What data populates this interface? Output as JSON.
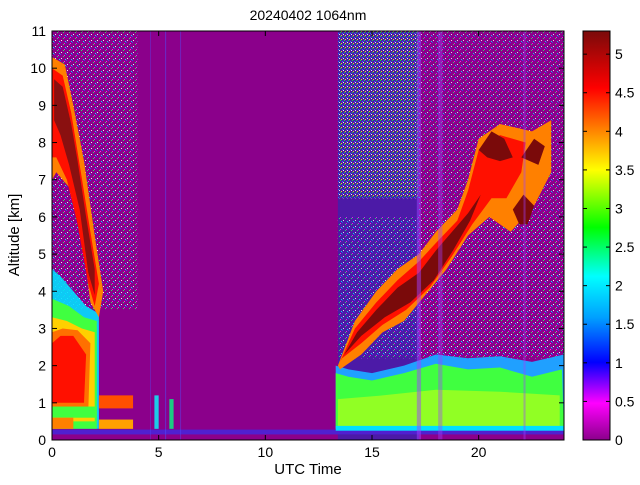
{
  "chart_data": {
    "type": "heatmap",
    "title": "20240402 1064nm",
    "xlabel": "UTC Time",
    "ylabel": "Altitude [km]",
    "xlim": [
      0,
      24
    ],
    "ylim": [
      0,
      11
    ],
    "x_ticks": [
      0,
      5,
      10,
      15,
      20
    ],
    "y_ticks": [
      0,
      1,
      2,
      3,
      4,
      5,
      6,
      7,
      8,
      9,
      10,
      11
    ],
    "colorbar": {
      "range": [
        0,
        5.3
      ],
      "ticks": [
        0,
        0.5,
        1,
        1.5,
        2,
        2.5,
        3,
        3.5,
        4,
        4.5,
        5
      ],
      "tick_labels": [
        "0",
        "0.5",
        "1",
        "1.5",
        "2",
        "2.5",
        "3",
        "3.5",
        "4",
        "4.5",
        "5"
      ],
      "colormap": "jet-like with magenta/purple low end",
      "colors": [
        "#8b008b",
        "#ff00ff",
        "#0000ff",
        "#00a0ff",
        "#00ffff",
        "#00ff00",
        "#ffff00",
        "#ff8000",
        "#ff0000",
        "#7a0a0a"
      ]
    },
    "background_color": "#8b008b",
    "features": [
      {
        "name": "early high cloud",
        "time_range": [
          0,
          2.2
        ],
        "altitude_range": [
          3.5,
          10.2
        ],
        "value": 4.5
      },
      {
        "name": "early boundary layer",
        "time_range": [
          0,
          2.2
        ],
        "altitude_range": [
          0.3,
          3.2
        ],
        "value": 3.5
      },
      {
        "name": "rising cloud layer",
        "time_range": [
          13.4,
          23.4
        ],
        "altitude_range": [
          1.8,
          8.4
        ],
        "value": 5.2
      },
      {
        "name": "afternoon boundary layer",
        "time_range": [
          13.3,
          24
        ],
        "altitude_range": [
          0.3,
          2.2
        ],
        "value": 2.6
      }
    ]
  }
}
